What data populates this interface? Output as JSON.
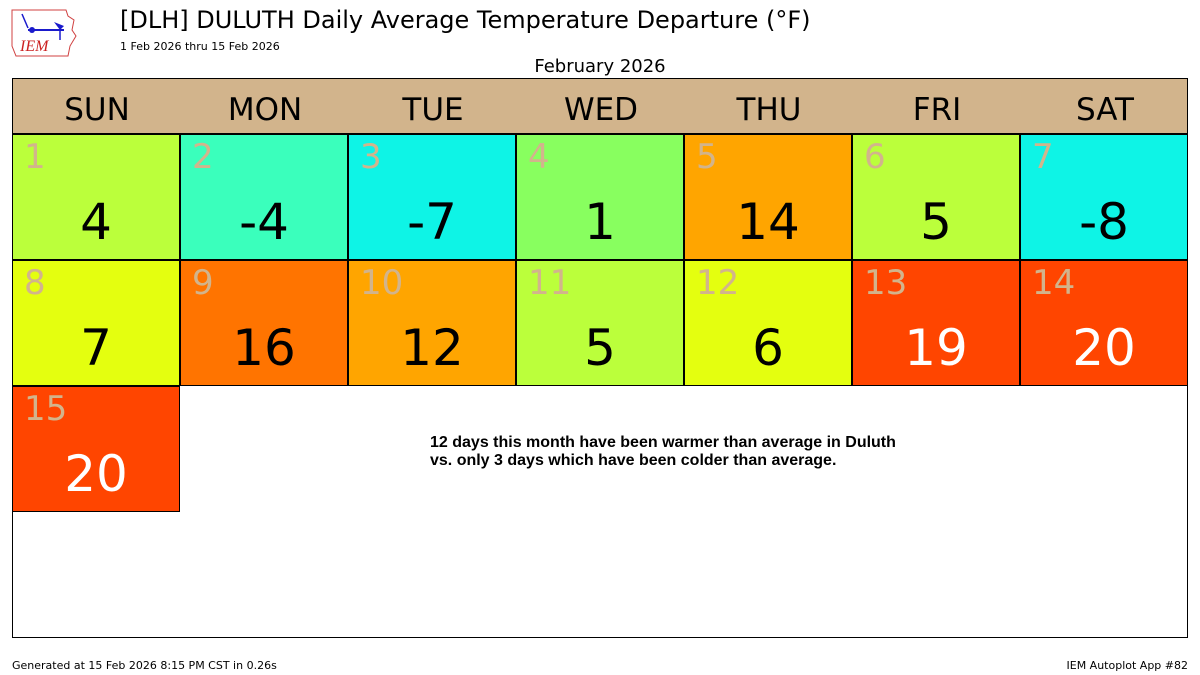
{
  "header": {
    "logo_text": "IEM",
    "title": "[DLH] DULUTH Daily Average Temperature Departure (°F)",
    "subtitle": "1 Feb 2026 thru 15 Feb 2026",
    "month_label": "February 2026"
  },
  "weekdays": [
    "SUN",
    "MON",
    "TUE",
    "WED",
    "THU",
    "FRI",
    "SAT"
  ],
  "days": [
    {
      "day": "1",
      "value": "4",
      "color": "#bbff3b",
      "text_color": "#000000",
      "row": 0,
      "col": 0
    },
    {
      "day": "2",
      "value": "-4",
      "color": "#3affbc",
      "text_color": "#000000",
      "row": 0,
      "col": 1
    },
    {
      "day": "3",
      "value": "-7",
      "color": "#0ef4e6",
      "text_color": "#000000",
      "row": 0,
      "col": 2
    },
    {
      "day": "4",
      "value": "1",
      "color": "#88ff5f",
      "text_color": "#000000",
      "row": 0,
      "col": 3
    },
    {
      "day": "5",
      "value": "14",
      "color": "#ffa500",
      "text_color": "#000000",
      "row": 0,
      "col": 4
    },
    {
      "day": "6",
      "value": "5",
      "color": "#bbff3b",
      "text_color": "#000000",
      "row": 0,
      "col": 5
    },
    {
      "day": "7",
      "value": "-8",
      "color": "#0ef4e6",
      "text_color": "#000000",
      "row": 0,
      "col": 6
    },
    {
      "day": "8",
      "value": "7",
      "color": "#e4ff0f",
      "text_color": "#000000",
      "row": 1,
      "col": 0
    },
    {
      "day": "9",
      "value": "16",
      "color": "#ff7400",
      "text_color": "#000000",
      "row": 1,
      "col": 1
    },
    {
      "day": "10",
      "value": "12",
      "color": "#ffa500",
      "text_color": "#000000",
      "row": 1,
      "col": 2
    },
    {
      "day": "11",
      "value": "5",
      "color": "#bbff3b",
      "text_color": "#000000",
      "row": 1,
      "col": 3
    },
    {
      "day": "12",
      "value": "6",
      "color": "#e4ff0f",
      "text_color": "#000000",
      "row": 1,
      "col": 4
    },
    {
      "day": "13",
      "value": "19",
      "color": "#ff4500",
      "text_color": "#ffffff",
      "row": 1,
      "col": 5
    },
    {
      "day": "14",
      "value": "20",
      "color": "#ff4500",
      "text_color": "#ffffff",
      "row": 1,
      "col": 6
    },
    {
      "day": "15",
      "value": "20",
      "color": "#ff4500",
      "text_color": "#ffffff",
      "row": 2,
      "col": 0
    }
  ],
  "note": {
    "line1": "12 days this month have been warmer than average in Duluth",
    "line2": "vs. only 3 days which have been colder than average."
  },
  "footer": {
    "generated": "Generated at 15 Feb 2026 8:15 PM CST in 0.26s",
    "app": "IEM Autoplot App #82"
  },
  "chart_data": {
    "type": "heatmap",
    "title": "[DLH] DULUTH Daily Average Temperature Departure (°F)",
    "subtitle": "1 Feb 2026 thru 15 Feb 2026",
    "month": "February 2026",
    "columns": [
      "SUN",
      "MON",
      "TUE",
      "WED",
      "THU",
      "FRI",
      "SAT"
    ],
    "x": [
      1,
      2,
      3,
      4,
      5,
      6,
      7,
      8,
      9,
      10,
      11,
      12,
      13,
      14,
      15
    ],
    "values": [
      4,
      -4,
      -7,
      1,
      14,
      5,
      -8,
      7,
      16,
      12,
      5,
      6,
      19,
      20,
      20
    ],
    "annotation": "12 days this month have been warmer than average in Duluth vs. only 3 days which have been colder than average.",
    "units": "°F"
  }
}
